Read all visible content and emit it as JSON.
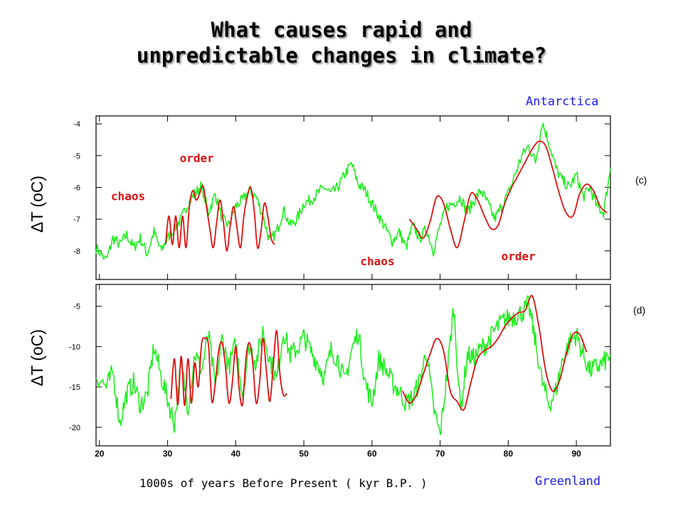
{
  "title": {
    "line1": "What causes rapid and",
    "line2": "unpredictable changes in climate?"
  },
  "sites": {
    "top": "Antarctica",
    "bottom": "Greenland"
  },
  "colors": {
    "data": "#22ee22",
    "fit": "#dd1111",
    "annotation": "#dd1111",
    "site": "#1a1ae6"
  },
  "chart_data": [
    {
      "type": "line",
      "panel_label": "(c)",
      "ylabel": "ΔT (oC)",
      "xlim": [
        19.5,
        95
      ],
      "ylim": [
        -8.9,
        -3.75
      ],
      "yticks": [
        -4,
        -5,
        -6,
        -7,
        -8
      ],
      "ytick_labels": [
        "-4",
        "-5",
        "-6",
        "-7",
        "-8"
      ],
      "xticks": [
        20,
        30,
        40,
        50,
        60,
        70,
        80,
        90
      ],
      "annotations": [
        {
          "text": "order",
          "x": 34.3,
          "y": -5.2
        },
        {
          "text": "chaos",
          "x": 24.2,
          "y": -6.4
        },
        {
          "text": "chaos",
          "x": 60.8,
          "y": -8.45
        },
        {
          "text": "order",
          "x": 81.5,
          "y": -8.3
        }
      ],
      "series": [
        {
          "role": "data",
          "x": [
            19.5,
            21,
            22,
            23,
            24,
            25,
            26,
            27,
            28,
            29,
            30,
            31,
            32,
            33,
            34,
            35,
            36,
            37,
            38,
            39,
            40,
            41,
            42,
            43,
            44,
            45,
            46,
            47,
            48,
            49,
            50,
            51,
            52,
            53,
            54,
            55,
            56,
            57,
            58,
            59,
            60,
            61,
            62,
            63,
            64,
            65,
            66,
            67,
            68,
            69,
            70,
            71,
            72,
            73,
            74,
            75,
            76,
            77,
            78,
            79,
            80,
            81,
            82,
            83,
            84,
            85,
            86,
            87,
            88,
            89,
            90,
            91,
            92,
            93,
            94,
            95
          ],
          "y": [
            -7.9,
            -8.3,
            -7.6,
            -7.8,
            -7.5,
            -7.9,
            -7.6,
            -8.1,
            -7.4,
            -8.0,
            -7.6,
            -7.3,
            -7.0,
            -6.5,
            -6.2,
            -5.95,
            -6.8,
            -6.2,
            -7.0,
            -7.2,
            -6.6,
            -6.4,
            -6.1,
            -6.3,
            -6.9,
            -7.7,
            -7.4,
            -6.7,
            -7.2,
            -7.0,
            -6.5,
            -6.4,
            -6.2,
            -6.0,
            -6.2,
            -6.0,
            -5.6,
            -5.25,
            -5.9,
            -6.1,
            -6.5,
            -6.9,
            -7.3,
            -7.7,
            -7.4,
            -7.9,
            -7.2,
            -7.6,
            -7.3,
            -8.0,
            -7.2,
            -6.6,
            -6.5,
            -6.3,
            -6.8,
            -6.4,
            -6.1,
            -6.5,
            -7.0,
            -6.6,
            -6.2,
            -5.6,
            -5.0,
            -4.7,
            -5.2,
            -3.95,
            -4.6,
            -5.4,
            -5.8,
            -6.0,
            -5.6,
            -6.3,
            -6.0,
            -6.6,
            -6.8,
            -5.4
          ]
        },
        {
          "role": "fit",
          "x": [
            29.7,
            30.2,
            30.7,
            31.2,
            31.7,
            32.2,
            32.7,
            33.2,
            33.7,
            34.2,
            34.7,
            35.2,
            35.7,
            36.2,
            36.7,
            37.2,
            37.7,
            38.2,
            38.7,
            39.2,
            39.7,
            40.2,
            40.7,
            41.2,
            41.7,
            42.2,
            42.7,
            43.2,
            43.7,
            44.2,
            44.7,
            45.2,
            45.7
          ],
          "y": [
            -7.8,
            -6.9,
            -7.8,
            -6.9,
            -7.9,
            -6.9,
            -7.9,
            -6.6,
            -6.1,
            -6.4,
            -6.2,
            -5.95,
            -6.6,
            -7.3,
            -7.9,
            -7.1,
            -6.4,
            -7.1,
            -8.0,
            -7.2,
            -6.6,
            -7.3,
            -7.9,
            -6.9,
            -6.3,
            -6.0,
            -6.7,
            -7.9,
            -7.4,
            -6.5,
            -6.9,
            -7.6,
            -7.8
          ]
        },
        {
          "role": "fit",
          "x": [
            65.5,
            66.5,
            67.5,
            68.5,
            69.5,
            70.5,
            71.5,
            72.5,
            73.5,
            74.5,
            75.5,
            76.5,
            77.5,
            78.5,
            79.5,
            80.5,
            81.5,
            82.5,
            83.5,
            84.5,
            85.5,
            86.5,
            87.5,
            88.5,
            89.5,
            90.5,
            91.5,
            92.5,
            93.5,
            94.5
          ],
          "y": [
            -7.0,
            -7.3,
            -7.6,
            -7.1,
            -6.3,
            -6.5,
            -7.3,
            -7.9,
            -7.1,
            -6.2,
            -6.4,
            -6.9,
            -7.3,
            -7.2,
            -6.5,
            -6.0,
            -5.6,
            -5.2,
            -4.8,
            -4.55,
            -4.7,
            -5.4,
            -6.2,
            -6.8,
            -6.9,
            -6.2,
            -5.9,
            -6.1,
            -6.6,
            -6.8
          ]
        }
      ]
    },
    {
      "type": "line",
      "panel_label": "(d)",
      "ylabel": "ΔT (oC)",
      "xlabel": "1000s of years Before Present ( kyr B.P. )",
      "xlim": [
        19.5,
        95
      ],
      "ylim": [
        -22.3,
        -2.3
      ],
      "yticks": [
        -5,
        -10,
        -15,
        -20
      ],
      "ytick_labels": [
        "-5",
        "-10",
        "-15",
        "-20"
      ],
      "xticks": [
        20,
        30,
        40,
        50,
        60,
        70,
        80,
        90
      ],
      "xtick_labels": [
        "20",
        "30",
        "40",
        "50",
        "60",
        "70",
        "80",
        "90"
      ],
      "series": [
        {
          "role": "data",
          "x": [
            19.5,
            21,
            22,
            23,
            24,
            25,
            26,
            27,
            28,
            29,
            30,
            31,
            32,
            33,
            34,
            35,
            36,
            37,
            38,
            39,
            40,
            41,
            42,
            43,
            44,
            45,
            46,
            47,
            48,
            49,
            50,
            51,
            52,
            53,
            54,
            55,
            56,
            57,
            58,
            59,
            60,
            61,
            62,
            63,
            64,
            65,
            66,
            67,
            68,
            69,
            70,
            71,
            72,
            73,
            74,
            75,
            76,
            77,
            78,
            79,
            80,
            81,
            82,
            83,
            84,
            85,
            86,
            87,
            88,
            89,
            90,
            91,
            92,
            93,
            94,
            95
          ],
          "y": [
            -13.5,
            -15.0,
            -13.2,
            -19.5,
            -15.8,
            -14.5,
            -17.2,
            -16.0,
            -10.0,
            -13.5,
            -16.5,
            -19.5,
            -12.3,
            -17.5,
            -10.8,
            -13.0,
            -8.5,
            -15.0,
            -9.0,
            -12.5,
            -9.7,
            -15.8,
            -9.8,
            -12.0,
            -8.0,
            -11.5,
            -14.2,
            -8.0,
            -11.0,
            -10.3,
            -8.8,
            -10.5,
            -12.0,
            -13.8,
            -10.5,
            -11.5,
            -14.5,
            -10.5,
            -8.2,
            -14.5,
            -17.0,
            -11.6,
            -12.8,
            -14.5,
            -15.5,
            -17.0,
            -16.3,
            -14.3,
            -10.5,
            -17.5,
            -21.0,
            -13.5,
            -5.0,
            -18.0,
            -11.0,
            -11.5,
            -10.2,
            -9.5,
            -8.0,
            -7.0,
            -6.5,
            -6.2,
            -5.8,
            -4.8,
            -9.5,
            -14.5,
            -17.2,
            -15.5,
            -11.5,
            -9.5,
            -8.5,
            -11.0,
            -13.0,
            -12.5,
            -12.0,
            -11.0
          ]
        },
        {
          "role": "fit",
          "x": [
            30.5,
            31.0,
            31.5,
            32.0,
            32.5,
            33.0,
            33.5,
            34.0,
            34.5,
            35.0,
            35.5,
            36.0,
            36.5,
            37.0,
            37.5,
            38.0,
            38.5,
            39.0,
            39.5,
            40.0,
            40.5,
            41.0,
            41.5,
            42.0,
            42.5,
            43.0,
            43.5,
            44.0,
            44.5,
            45.0,
            45.5,
            46.0,
            46.5,
            47.0,
            47.5
          ],
          "y": [
            -16.5,
            -11.5,
            -17.2,
            -11.2,
            -17.3,
            -11.5,
            -17.0,
            -12.0,
            -15.0,
            -9.6,
            -9.0,
            -9.8,
            -16.8,
            -14.5,
            -10.5,
            -9.5,
            -12.5,
            -17.0,
            -14.5,
            -10.0,
            -15.2,
            -17.2,
            -11.5,
            -9.5,
            -12.0,
            -17.0,
            -14.5,
            -9.0,
            -13.0,
            -16.8,
            -12.5,
            -8.0,
            -13.5,
            -16.0,
            -15.8
          ]
        },
        {
          "role": "fit",
          "x": [
            64.5,
            65.5,
            66.5,
            67.5,
            68.5,
            69.5,
            70.5,
            71.5,
            72.5,
            73.5,
            74.5,
            75.5,
            76.5,
            77.5,
            78.5,
            79.5,
            80.5,
            81.5,
            82.5,
            83.5,
            84.5,
            85.5,
            86.5,
            87.5,
            88.5,
            89.5,
            90.5,
            91.5
          ],
          "y": [
            -15.5,
            -17.0,
            -16.0,
            -13.5,
            -11.0,
            -9.0,
            -10.5,
            -15.5,
            -16.8,
            -17.8,
            -14.5,
            -11.5,
            -10.5,
            -10.0,
            -9.0,
            -7.5,
            -6.5,
            -5.8,
            -5.5,
            -3.7,
            -7.5,
            -13.0,
            -15.5,
            -14.3,
            -11.0,
            -8.5,
            -8.5,
            -10.7
          ]
        }
      ]
    }
  ]
}
